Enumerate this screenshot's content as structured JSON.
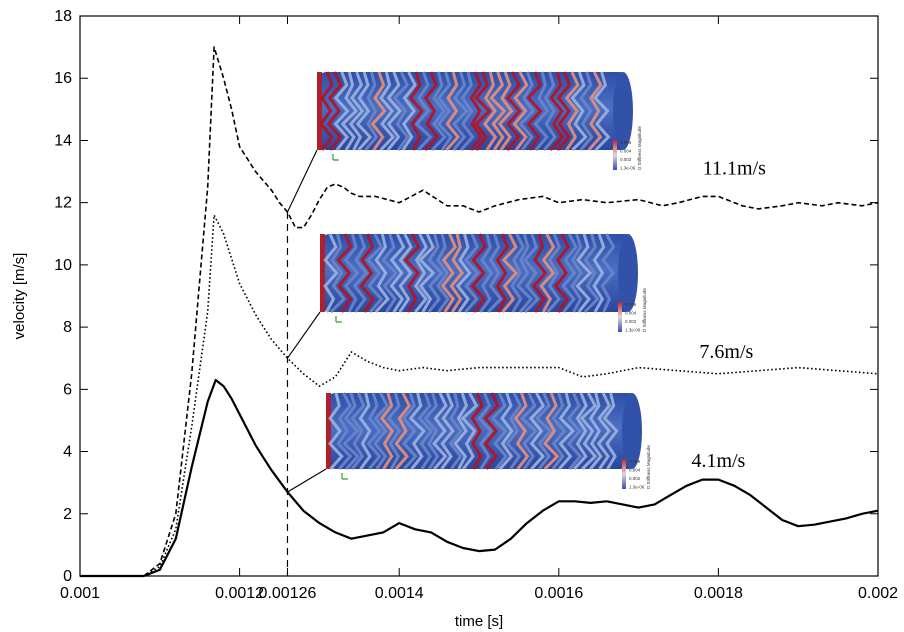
{
  "chart_data": {
    "type": "line",
    "xlabel": "time [s]",
    "ylabel": "velocity [m/s]",
    "xlim": [
      0.001,
      0.002
    ],
    "ylim": [
      0,
      18
    ],
    "grid": false,
    "x_ticks": [
      {
        "value": 0.001,
        "label": "0.001"
      },
      {
        "value": 0.0012,
        "label": "0.0012"
      },
      {
        "value": 0.00126,
        "label": "0.00126"
      },
      {
        "value": 0.0014,
        "label": "0.0014"
      },
      {
        "value": 0.0016,
        "label": "0.0016"
      },
      {
        "value": 0.0018,
        "label": "0.0018"
      },
      {
        "value": 0.002,
        "label": "0.002"
      }
    ],
    "y_ticks": [
      0,
      2,
      4,
      6,
      8,
      10,
      12,
      14,
      16,
      18
    ],
    "marker_line_x": 0.00126,
    "series": [
      {
        "id": "s11",
        "style": "dashed",
        "x": [
          0.001,
          0.00108,
          0.0011,
          0.00112,
          0.00114,
          0.00116,
          0.001168,
          0.00118,
          0.00119,
          0.0012,
          0.00121,
          0.00122,
          0.00123,
          0.00124,
          0.00125,
          0.00126,
          0.00127,
          0.00128,
          0.00129,
          0.0013,
          0.00131,
          0.00132,
          0.00133,
          0.00134,
          0.00135,
          0.00137,
          0.0014,
          0.00143,
          0.00146,
          0.00148,
          0.0015,
          0.00152,
          0.00155,
          0.00158,
          0.0016,
          0.00163,
          0.00166,
          0.0017,
          0.00173,
          0.00175,
          0.00178,
          0.0018,
          0.00183,
          0.00185,
          0.00188,
          0.0019,
          0.00193,
          0.00195,
          0.00198,
          0.002
        ],
        "y": [
          0,
          0,
          0.4,
          2.0,
          6.5,
          12.5,
          17.0,
          16.0,
          15.0,
          13.8,
          13.4,
          13.0,
          12.7,
          12.4,
          12.0,
          11.7,
          11.2,
          11.2,
          11.6,
          12.1,
          12.5,
          12.6,
          12.5,
          12.3,
          12.2,
          12.2,
          12.0,
          12.4,
          11.9,
          11.9,
          11.7,
          11.9,
          12.1,
          12.2,
          12.0,
          12.1,
          12.0,
          12.1,
          11.9,
          12.0,
          12.2,
          12.2,
          11.9,
          11.8,
          11.9,
          12.0,
          11.9,
          12.0,
          11.9,
          12.0
        ]
      },
      {
        "id": "s76",
        "style": "dotted",
        "x": [
          0.001,
          0.00108,
          0.0011,
          0.00112,
          0.00114,
          0.00116,
          0.001168,
          0.00118,
          0.00119,
          0.0012,
          0.00121,
          0.00122,
          0.00123,
          0.00124,
          0.00125,
          0.00126,
          0.00128,
          0.0013,
          0.00132,
          0.00134,
          0.00136,
          0.00138,
          0.0014,
          0.00143,
          0.00146,
          0.0015,
          0.00155,
          0.0016,
          0.00163,
          0.00166,
          0.0017,
          0.00175,
          0.0018,
          0.00185,
          0.0019,
          0.00195,
          0.002
        ],
        "y": [
          0,
          0,
          0.3,
          1.5,
          4.8,
          8.5,
          11.6,
          11.0,
          10.2,
          9.4,
          8.9,
          8.4,
          8.0,
          7.6,
          7.3,
          7.0,
          6.5,
          6.1,
          6.4,
          7.2,
          6.9,
          6.7,
          6.6,
          6.7,
          6.6,
          6.7,
          6.7,
          6.7,
          6.4,
          6.5,
          6.7,
          6.6,
          6.5,
          6.6,
          6.7,
          6.6,
          6.5
        ]
      },
      {
        "id": "s41",
        "style": "solid",
        "x": [
          0.001,
          0.00108,
          0.0011,
          0.00112,
          0.00114,
          0.00116,
          0.00117,
          0.00118,
          0.00119,
          0.0012,
          0.00121,
          0.00122,
          0.00123,
          0.00124,
          0.00126,
          0.00128,
          0.0013,
          0.00132,
          0.00134,
          0.00136,
          0.00138,
          0.0014,
          0.00142,
          0.00144,
          0.00146,
          0.00148,
          0.0015,
          0.00152,
          0.00154,
          0.00156,
          0.00158,
          0.0016,
          0.00162,
          0.00164,
          0.00166,
          0.00168,
          0.0017,
          0.00172,
          0.00174,
          0.00176,
          0.00178,
          0.0018,
          0.00182,
          0.00184,
          0.00186,
          0.00188,
          0.0019,
          0.00192,
          0.00194,
          0.00196,
          0.00198,
          0.002
        ],
        "y": [
          0,
          0,
          0.2,
          1.2,
          3.5,
          5.6,
          6.3,
          6.1,
          5.7,
          5.2,
          4.7,
          4.2,
          3.8,
          3.4,
          2.7,
          2.1,
          1.7,
          1.4,
          1.2,
          1.3,
          1.4,
          1.7,
          1.5,
          1.4,
          1.1,
          0.9,
          0.8,
          0.85,
          1.2,
          1.7,
          2.1,
          2.4,
          2.4,
          2.35,
          2.4,
          2.3,
          2.2,
          2.3,
          2.6,
          2.9,
          3.1,
          3.1,
          2.9,
          2.6,
          2.2,
          1.8,
          1.6,
          1.65,
          1.75,
          1.85,
          2.0,
          2.1
        ]
      }
    ],
    "annotations": [
      {
        "series": "s11",
        "label": "11.1m/s",
        "at_x": 0.00182,
        "at_y": 12.9
      },
      {
        "series": "s76",
        "label": "7.6m/s",
        "at_x": 0.00181,
        "at_y": 7.0
      },
      {
        "series": "s41",
        "label": "4.1m/s",
        "at_x": 0.0018,
        "at_y": 3.5
      }
    ],
    "insets": [
      {
        "for": "s11",
        "colorbar_ticks": [
          "0.006",
          "0.004",
          "0.002",
          "1.3e-06"
        ],
        "colorbar_title": "D Stiffness Magnitude"
      },
      {
        "for": "s76",
        "colorbar_ticks": [
          "0.006",
          "0.004",
          "0.002",
          "1.3e-06"
        ],
        "colorbar_title": "D Stiffness Magnitude"
      },
      {
        "for": "s41",
        "colorbar_ticks": [
          "0.006",
          "0.004",
          "0.002",
          "1.3e-06"
        ],
        "colorbar_title": "D Stiffness Magnitude"
      }
    ]
  }
}
